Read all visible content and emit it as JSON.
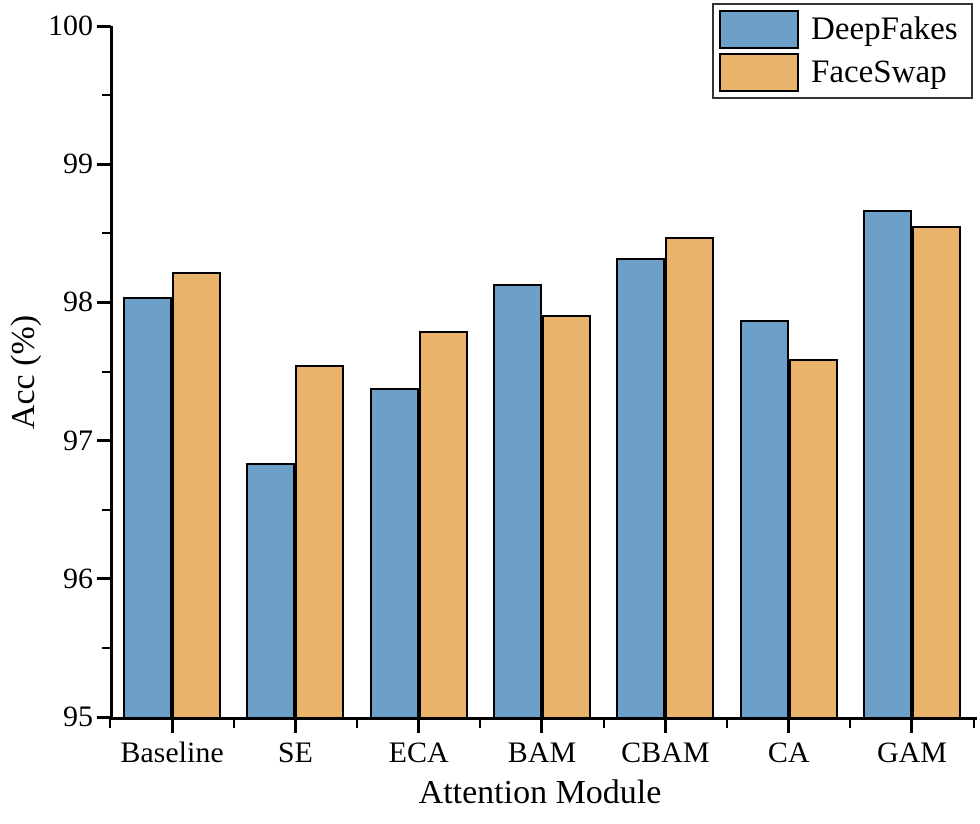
{
  "chart_data": {
    "type": "bar",
    "title": "",
    "xlabel": "Attention Module",
    "ylabel": "Acc (%)",
    "categories": [
      "Baseline",
      "SE",
      "ECA",
      "BAM",
      "CBAM",
      "CA",
      "GAM"
    ],
    "series": [
      {
        "name": "DeepFakes",
        "color": "#6CA0C8",
        "values": [
          98.04,
          96.84,
          97.38,
          98.13,
          98.32,
          97.87,
          98.67
        ]
      },
      {
        "name": "FaceSwap",
        "color": "#E9B36B",
        "values": [
          98.22,
          97.55,
          97.79,
          97.91,
          98.47,
          97.59,
          98.55
        ]
      }
    ],
    "ylim": [
      95,
      100
    ],
    "yticks": [
      "95",
      "96",
      "97",
      "98",
      "99",
      "100"
    ],
    "y_minor_step": 0.5,
    "grid": false,
    "legend_position": "top-right",
    "bar_edge_color": "#000000",
    "axis_color": "#000000"
  }
}
